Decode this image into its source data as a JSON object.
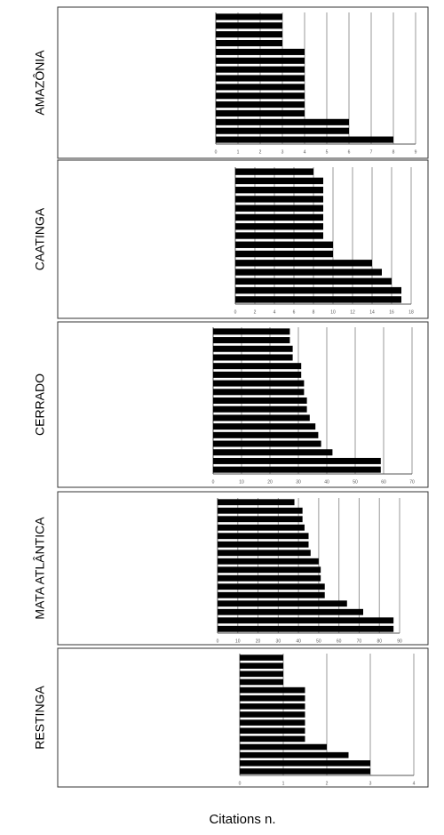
{
  "chart_data": [
    {
      "type": "bar",
      "orientation": "horizontal",
      "title": "AMAZÔNIA",
      "color": "#000000",
      "grid": true,
      "categories": [
        null,
        null,
        null,
        null,
        null,
        null,
        null,
        null,
        null,
        null,
        null,
        null,
        null,
        null,
        null
      ],
      "values": [
        3,
        3,
        3,
        3,
        4,
        4,
        4,
        4,
        4,
        4,
        4,
        4,
        6,
        6,
        8
      ],
      "xlim": [
        0,
        9
      ],
      "xticks": [
        0,
        1,
        2,
        3,
        4,
        5,
        6,
        7,
        8,
        9
      ]
    },
    {
      "type": "bar",
      "orientation": "horizontal",
      "title": "CAATINGA",
      "color": "#000000",
      "grid": true,
      "categories": [
        null,
        null,
        null,
        null,
        null,
        null,
        null,
        null,
        null,
        null,
        null,
        null,
        null,
        null,
        null
      ],
      "values": [
        8,
        9,
        9,
        9,
        9,
        9,
        9,
        9,
        10,
        10,
        14,
        15,
        16,
        17,
        17
      ],
      "xlim": [
        0,
        18
      ],
      "xticks": [
        0,
        2,
        4,
        6,
        8,
        10,
        12,
        14,
        16,
        18
      ]
    },
    {
      "type": "bar",
      "orientation": "horizontal",
      "title": "CERRADO",
      "color": "#000000",
      "grid": true,
      "categories": [
        null,
        null,
        null,
        null,
        null,
        null,
        null,
        null,
        null,
        null,
        null,
        null,
        null,
        null,
        null,
        null,
        null
      ],
      "values": [
        27,
        27,
        28,
        28,
        31,
        31,
        32,
        32,
        33,
        33,
        34,
        36,
        37,
        38,
        42,
        59,
        59
      ],
      "xlim": [
        0,
        70
      ],
      "xticks": [
        0,
        10,
        20,
        30,
        40,
        50,
        60,
        70
      ]
    },
    {
      "type": "bar",
      "orientation": "horizontal",
      "title": "MATA ATLÂNTICA",
      "color": "#000000",
      "grid": true,
      "categories": [
        null,
        null,
        null,
        null,
        null,
        null,
        null,
        null,
        null,
        null,
        null,
        null,
        null,
        null,
        null,
        null
      ],
      "values": [
        38,
        42,
        42,
        43,
        45,
        45,
        46,
        50,
        51,
        51,
        53,
        53,
        64,
        72,
        87,
        87
      ],
      "xlim": [
        0,
        90
      ],
      "xticks": [
        0,
        10,
        20,
        30,
        40,
        50,
        60,
        70,
        80,
        90
      ]
    },
    {
      "type": "bar",
      "orientation": "horizontal",
      "title": "RESTINGA",
      "color": "#000000",
      "grid": true,
      "categories": [
        null,
        null,
        null,
        null,
        null,
        null,
        null,
        null,
        null,
        null,
        null,
        null,
        null,
        null,
        null
      ],
      "values": [
        1,
        1,
        1,
        1,
        1.5,
        1.5,
        1.5,
        1.5,
        1.5,
        1.5,
        1.5,
        2,
        2.5,
        3,
        3
      ],
      "xlim": [
        0,
        4
      ],
      "xticks": [
        0,
        1,
        2,
        3,
        4
      ]
    }
  ],
  "figure": {
    "xlabel": "Citations n."
  }
}
